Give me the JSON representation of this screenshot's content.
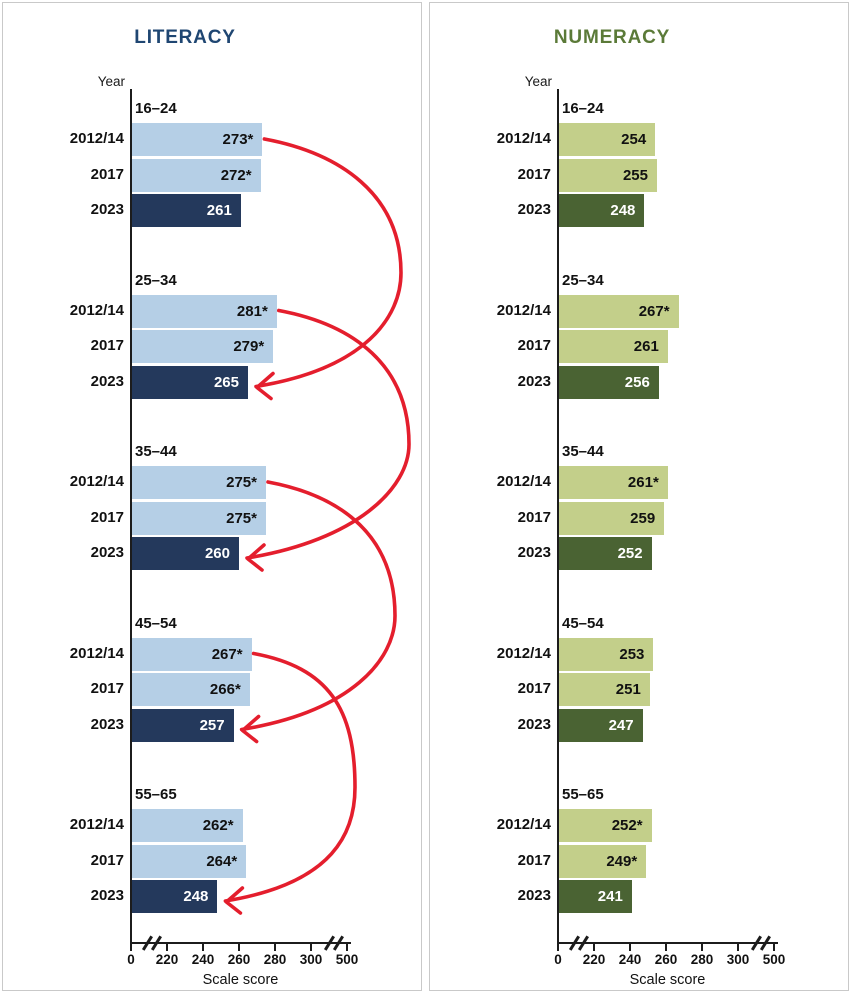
{
  "chart_data": [
    {
      "type": "bar",
      "orientation": "horizontal",
      "title": "LITERACY",
      "ylabel": "Year",
      "xlabel": "Scale score",
      "x_ticks": [
        "0",
        "220",
        "240",
        "260",
        "280",
        "300",
        "500"
      ],
      "x_axis_range": [
        0,
        500
      ],
      "axis_breaks": [
        "between 0 and 220",
        "between 300 and 500"
      ],
      "grid": false,
      "legend_position": "none",
      "colors": {
        "title": "#1f4672",
        "bar_light": "#b5cfe6",
        "bar_dark": "#24395c",
        "text_on_dark": "#ffffff",
        "arrow": "#e41e2d",
        "axis": "#1c1c1c"
      },
      "categories": [
        "16–24",
        "25–34",
        "35–44",
        "45–54",
        "55–65"
      ],
      "series": [
        {
          "name": "2012/14",
          "values": [
            273,
            281,
            275,
            267,
            262
          ],
          "labels": [
            "273*",
            "281*",
            "275*",
            "267*",
            "262*"
          ]
        },
        {
          "name": "2017",
          "values": [
            272,
            279,
            275,
            266,
            264
          ],
          "labels": [
            "272*",
            "279*",
            "275*",
            "266*",
            "264*"
          ]
        },
        {
          "name": "2023",
          "values": [
            261,
            265,
            260,
            257,
            248
          ],
          "labels": [
            "261",
            "265",
            "260",
            "257",
            "248"
          ],
          "emphasis": true
        }
      ],
      "cohort_arrows": [
        {
          "from_age": "16–24",
          "from_year": "2012/14",
          "to_age": "25–34",
          "to_year": "2023"
        },
        {
          "from_age": "25–34",
          "from_year": "2012/14",
          "to_age": "35–44",
          "to_year": "2023"
        },
        {
          "from_age": "35–44",
          "from_year": "2012/14",
          "to_age": "45–54",
          "to_year": "2023"
        },
        {
          "from_age": "45–54",
          "from_year": "2012/14",
          "to_age": "55–65",
          "to_year": "2023"
        }
      ]
    },
    {
      "type": "bar",
      "orientation": "horizontal",
      "title": "NUMERACY",
      "ylabel": "Year",
      "xlabel": "Scale score",
      "x_ticks": [
        "0",
        "220",
        "240",
        "260",
        "280",
        "300",
        "500"
      ],
      "x_axis_range": [
        0,
        500
      ],
      "axis_breaks": [
        "between 0 and 220",
        "between 300 and 500"
      ],
      "grid": false,
      "legend_position": "none",
      "colors": {
        "title": "#5b7a38",
        "bar_light": "#c3cf8a",
        "bar_dark": "#4a6333",
        "text_on_dark": "#ffffff",
        "axis": "#1c1c1c"
      },
      "categories": [
        "16–24",
        "25–34",
        "35–44",
        "45–54",
        "55–65"
      ],
      "series": [
        {
          "name": "2012/14",
          "values": [
            254,
            267,
            261,
            253,
            252
          ],
          "labels": [
            "254",
            "267*",
            "261*",
            "253",
            "252*"
          ]
        },
        {
          "name": "2017",
          "values": [
            255,
            261,
            259,
            251,
            249
          ],
          "labels": [
            "255",
            "261",
            "259",
            "251",
            "249*"
          ]
        },
        {
          "name": "2023",
          "values": [
            248,
            256,
            252,
            247,
            241
          ],
          "labels": [
            "248",
            "256",
            "252",
            "247",
            "241"
          ],
          "emphasis": true
        }
      ],
      "cohort_arrows": []
    }
  ]
}
